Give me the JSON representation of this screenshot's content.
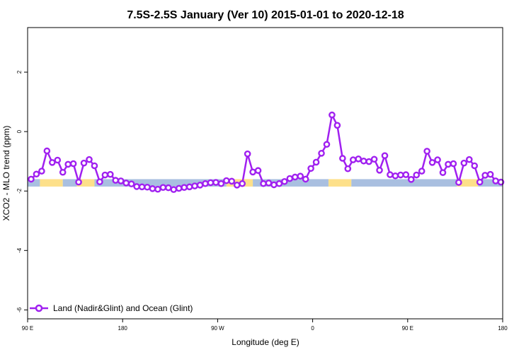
{
  "chart_data": {
    "type": "line",
    "title": "7.5S-2.5S January (Ver 10)   2015-01-01 to 2020-12-18",
    "xlabel": "Longitude (deg E)",
    "ylabel": "XCO2 - MLO trend (ppm)",
    "xlim": [
      -90,
      180
    ],
    "ylim": [
      -6.3,
      3.5
    ],
    "x_ticks": [
      {
        "value": -90,
        "label": "90 E"
      },
      {
        "value": -36,
        "label": "180"
      },
      {
        "value": 18,
        "label": "90 W"
      },
      {
        "value": 72,
        "label": "0"
      },
      {
        "value": 126,
        "label": "90 E"
      },
      {
        "value": 180,
        "label": "180"
      }
    ],
    "y_ticks": [
      {
        "value": -6,
        "label": "-6"
      },
      {
        "value": -4,
        "label": "-4"
      },
      {
        "value": -2,
        "label": "-2"
      },
      {
        "value": 0,
        "label": "0"
      },
      {
        "value": 2,
        "label": "2"
      }
    ],
    "grid": false,
    "legend_position": "bottom-left",
    "series": [
      {
        "name": "Land (Nadir&Glint) and Ocean (Glint)",
        "color": "#a020f0",
        "x": [
          -88,
          -85,
          -82,
          -79,
          -76,
          -73,
          -70,
          -67,
          -64,
          -61,
          -58,
          -55,
          -52,
          -49,
          -46,
          -43,
          -40,
          -37,
          -34,
          -31,
          -28,
          -25,
          -22,
          -19,
          -16,
          -13,
          -10,
          -7,
          -4,
          -1,
          2,
          5,
          8,
          11,
          14,
          17,
          20,
          23,
          26,
          29,
          32,
          35,
          38,
          41,
          44,
          47,
          50,
          53,
          56,
          59,
          62,
          65,
          68,
          71,
          74,
          77,
          80,
          83,
          86,
          89,
          92,
          95,
          98,
          101,
          104,
          107,
          110,
          113,
          116,
          119,
          122,
          125,
          128,
          131,
          134,
          137,
          140,
          143,
          146,
          149,
          152,
          155,
          158,
          161,
          164,
          167,
          170,
          173,
          176,
          179
        ],
        "values": [
          -1.6,
          -1.43,
          -1.33,
          -0.65,
          -1.04,
          -0.96,
          -1.37,
          -1.1,
          -1.08,
          -1.7,
          -1.06,
          -0.94,
          -1.15,
          -1.69,
          -1.46,
          -1.44,
          -1.64,
          -1.66,
          -1.73,
          -1.76,
          -1.85,
          -1.86,
          -1.87,
          -1.92,
          -1.94,
          -1.88,
          -1.89,
          -1.95,
          -1.91,
          -1.88,
          -1.86,
          -1.83,
          -1.8,
          -1.75,
          -1.72,
          -1.71,
          -1.75,
          -1.65,
          -1.67,
          -1.8,
          -1.75,
          -0.75,
          -1.36,
          -1.31,
          -1.75,
          -1.73,
          -1.79,
          -1.75,
          -1.68,
          -1.58,
          -1.53,
          -1.5,
          -1.6,
          -1.24,
          -1.03,
          -0.73,
          -0.43,
          0.56,
          0.21,
          -0.9,
          -1.25,
          -0.95,
          -0.92,
          -0.99,
          -1.01,
          -0.93,
          -1.3,
          -0.81,
          -1.45,
          -1.49,
          -1.46,
          -1.45,
          -1.61,
          -1.46,
          -1.33,
          -0.66,
          -1.04,
          -0.95,
          -1.38,
          -1.1,
          -1.08,
          -1.71,
          -1.06,
          -0.94,
          -1.15,
          -1.7,
          -1.47,
          -1.44,
          -1.66,
          -1.7
        ]
      }
    ],
    "surface_strip": {
      "y_top": -1.6,
      "y_bottom": -1.85,
      "colors": {
        "ocean": "#a9bfe0",
        "land": "#fde08a"
      },
      "segments": [
        {
          "type": "ocean",
          "x0": -90,
          "x1": -83
        },
        {
          "type": "land",
          "x0": -83,
          "x1": -70
        },
        {
          "type": "ocean",
          "x0": -70,
          "x1": -62
        },
        {
          "type": "land",
          "x0": -62,
          "x1": -52
        },
        {
          "type": "ocean",
          "x0": -52,
          "x1": 23
        },
        {
          "type": "land",
          "x0": 23,
          "x1": 38
        },
        {
          "type": "ocean",
          "x0": 38,
          "x1": 81
        },
        {
          "type": "land",
          "x0": 81,
          "x1": 94
        },
        {
          "type": "ocean",
          "x0": 94,
          "x1": 154
        },
        {
          "type": "land",
          "x0": 154,
          "x1": 166
        },
        {
          "type": "ocean",
          "x0": 166,
          "x1": 180
        }
      ]
    }
  }
}
